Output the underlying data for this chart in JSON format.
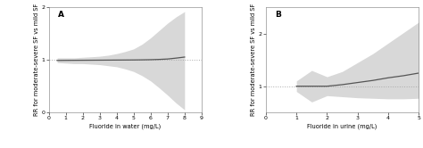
{
  "panel_A": {
    "label": "A",
    "xlabel": "Fluoride in water (mg/L)",
    "ylabel": "RR for moderate-severe SF vs mild SF",
    "xlim": [
      0.0,
      9.0
    ],
    "ylim": [
      0.0,
      2.0
    ],
    "xticks": [
      0.0,
      1.0,
      2.0,
      3.0,
      4.0,
      5.0,
      6.0,
      7.0,
      8.0,
      9.0
    ],
    "yticks": [
      0.0,
      1.0,
      2.0
    ],
    "ref_line_y": 1.0,
    "spline_x": [
      0.5,
      1.0,
      1.5,
      2.0,
      2.5,
      3.0,
      3.5,
      4.0,
      4.5,
      5.0,
      5.5,
      6.0,
      6.5,
      7.0,
      7.5,
      8.0
    ],
    "spline_y": [
      0.99,
      0.992,
      0.993,
      0.994,
      0.995,
      0.996,
      0.997,
      0.998,
      0.999,
      1.0,
      1.002,
      1.005,
      1.01,
      1.018,
      1.035,
      1.055
    ],
    "ci_upper": [
      1.04,
      1.04,
      1.04,
      1.05,
      1.06,
      1.07,
      1.09,
      1.12,
      1.16,
      1.21,
      1.3,
      1.42,
      1.56,
      1.7,
      1.82,
      1.92
    ],
    "ci_lower": [
      0.95,
      0.94,
      0.93,
      0.93,
      0.92,
      0.91,
      0.89,
      0.87,
      0.83,
      0.78,
      0.7,
      0.6,
      0.47,
      0.33,
      0.18,
      0.05
    ]
  },
  "panel_B": {
    "label": "B",
    "xlabel": "Fluoride in urine (mg/L)",
    "ylabel": "RR for moderate-severe SF vs mild SF",
    "xlim": [
      0.0,
      5.0
    ],
    "ylim": [
      0.5,
      2.5
    ],
    "xticks": [
      0.0,
      1.0,
      2.0,
      3.0,
      4.0,
      5.0
    ],
    "yticks": [
      1.0,
      2.0
    ],
    "ref_line_y": 1.0,
    "spline_x": [
      1.0,
      1.2,
      1.5,
      2.0,
      2.5,
      3.0,
      3.5,
      4.0,
      4.5,
      5.0
    ],
    "spline_y": [
      1.0,
      1.0,
      1.0,
      1.0,
      1.03,
      1.07,
      1.11,
      1.16,
      1.2,
      1.25
    ],
    "ci_upper": [
      1.1,
      1.18,
      1.3,
      1.18,
      1.28,
      1.45,
      1.62,
      1.82,
      2.02,
      2.22
    ],
    "ci_lower": [
      0.9,
      0.82,
      0.7,
      0.82,
      0.8,
      0.78,
      0.77,
      0.76,
      0.76,
      0.77
    ]
  },
  "line_color": "#555555",
  "ci_color": "#d8d8d8",
  "ref_color": "#aaaaaa",
  "background_color": "#ffffff",
  "fontsize_label": 4.8,
  "fontsize_tick": 4.5,
  "fontsize_panel": 6.5
}
